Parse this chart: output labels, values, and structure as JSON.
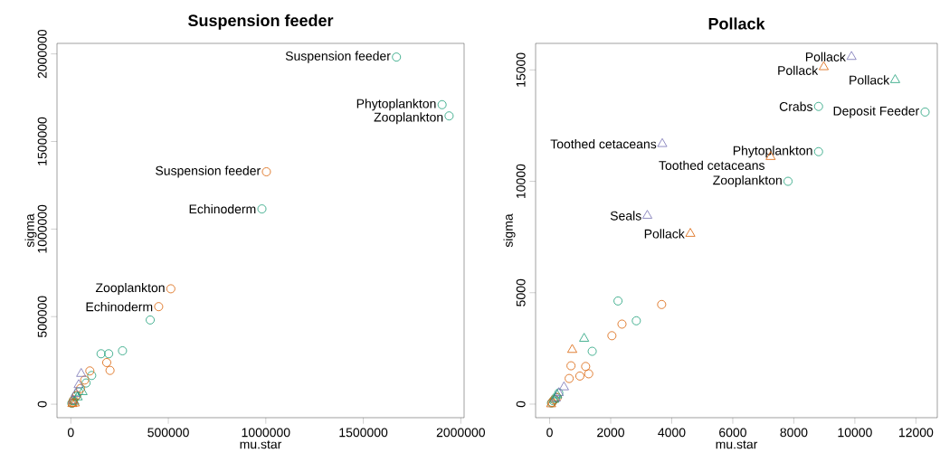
{
  "chart_data": [
    {
      "type": "scatter",
      "title": "Suspension feeder",
      "xlabel": "mu.star",
      "ylabel": "sigma",
      "xlim": [
        -71000,
        2017000
      ],
      "ylim": [
        -77000,
        2060000
      ],
      "xticks": [
        0,
        500000,
        1000000,
        1500000,
        2000000
      ],
      "yticks": [
        0,
        500000,
        1000000,
        1500000,
        2000000
      ],
      "series": [
        {
          "color": "#1b9e77",
          "marker": "circle",
          "x": [
            1904000,
            1940000,
            980000,
            407000,
            155000,
            194000,
            265000,
            107000,
            78000,
            40000,
            25000,
            12000,
            5000
          ],
          "values": [
            1710000,
            1646000,
            1115000,
            481000,
            288000,
            288000,
            305000,
            164000,
            121000,
            70000,
            45000,
            20000,
            5000
          ]
        },
        {
          "color": "#d95f02",
          "marker": "circle",
          "x": [
            512800,
            450500,
            184000,
            201000,
            97500,
            71000,
            50000,
            30000,
            15000,
            8000
          ],
          "values": [
            659000,
            557000,
            238000,
            193000,
            190000,
            138000,
            90000,
            50000,
            25000,
            8000
          ]
        },
        {
          "color": "#7570b3",
          "marker": "triangle",
          "x": [
            53000,
            40000,
            25000,
            12000
          ],
          "values": [
            174000,
            110000,
            60000,
            20000
          ]
        },
        {
          "color": "#1b9e77",
          "marker": "triangle",
          "x": [
            60000,
            35000,
            18000
          ],
          "values": [
            70000,
            40000,
            15000
          ]
        },
        {
          "color": "#d95f02",
          "marker": "triangle",
          "x": [
            20000,
            8000
          ],
          "values": [
            5000,
            2000
          ]
        },
        {
          "color": "#1b9e77",
          "marker": "circle",
          "x": [
            1670000
          ],
          "values": [
            1982000
          ]
        },
        {
          "color": "#d95f02",
          "marker": "circle",
          "x": [
            1003000
          ],
          "values": [
            1327000
          ]
        }
      ],
      "annotations": [
        {
          "text": "Suspension feeder",
          "x": 1670000,
          "y": 1982000
        },
        {
          "text": "Phytoplankton",
          "x": 1904000,
          "y": 1710000
        },
        {
          "text": "Zooplankton",
          "x": 1940000,
          "y": 1646000
        },
        {
          "text": "Suspension feeder",
          "x": 1003000,
          "y": 1327000
        },
        {
          "text": "Echinoderm",
          "x": 980000,
          "y": 1115000
        },
        {
          "text": "Zooplankton",
          "x": 512800,
          "y": 659000
        },
        {
          "text": "Echinoderm",
          "x": 450500,
          "y": 557000
        }
      ]
    },
    {
      "type": "scatter",
      "title": "Pollack",
      "xlabel": "mu.star",
      "ylabel": "sigma",
      "xlim": [
        -460,
        12700
      ],
      "ylim": [
        -610,
        16190
      ],
      "xticks": [
        0,
        2000,
        4000,
        6000,
        8000,
        10000,
        12000
      ],
      "yticks": [
        0,
        5000,
        10000,
        15000
      ],
      "series": [
        {
          "color": "#1b9e77",
          "marker": "circle",
          "x": [
            8810,
            12300,
            8810,
            7810,
            2240,
            2840,
            1395,
            300,
            200,
            120,
            60
          ],
          "values": [
            13360,
            13110,
            11330,
            10000,
            4630,
            3740,
            2370,
            500,
            300,
            150,
            50
          ]
        },
        {
          "color": "#d95f02",
          "marker": "circle",
          "x": [
            3670,
            2370,
            2040,
            700,
            1180,
            640,
            990,
            1280,
            250,
            150,
            80
          ],
          "values": [
            4470,
            3590,
            3070,
            1720,
            1690,
            1150,
            1260,
            1360,
            300,
            200,
            80
          ]
        },
        {
          "color": "#7570b3",
          "marker": "triangle",
          "x": [
            3690,
            3200,
            470,
            300,
            200
          ],
          "values": [
            11680,
            8460,
            760,
            500,
            250
          ]
        },
        {
          "color": "#d95f02",
          "marker": "triangle",
          "x": [
            7240,
            740,
            50
          ],
          "values": [
            11100,
            2440,
            0
          ]
        },
        {
          "color": "#1b9e77",
          "marker": "triangle",
          "x": [
            1130,
            250,
            150
          ],
          "values": [
            2940,
            400,
            200
          ]
        },
        {
          "color": "#7570b3",
          "marker": "triangle",
          "x": [
            9890
          ],
          "values": [
            15590
          ]
        },
        {
          "color": "#d95f02",
          "marker": "triangle",
          "x": [
            8980,
            4610
          ],
          "values": [
            15130,
            7650
          ]
        },
        {
          "color": "#1b9e77",
          "marker": "triangle",
          "x": [
            11320
          ],
          "values": [
            14550
          ]
        }
      ],
      "annotations": [
        {
          "text": "Pollack",
          "x": 9890,
          "y": 15590
        },
        {
          "text": "Pollack",
          "x": 8980,
          "y": 15130
        },
        {
          "text": "Pollack",
          "x": 11320,
          "y": 14550
        },
        {
          "text": "Crabs",
          "x": 8810,
          "y": 13360
        },
        {
          "text": "Deposit Feeder",
          "x": 12300,
          "y": 13110
        },
        {
          "text": "Toothed cetaceans",
          "x": 3690,
          "y": 11680
        },
        {
          "text": "Phytoplankton",
          "x": 8810,
          "y": 11330
        },
        {
          "text": "Toothed cetaceans",
          "x": 7240,
          "y": 11100
        },
        {
          "text": "Zooplankton",
          "x": 7810,
          "y": 10000
        },
        {
          "text": "Seals",
          "x": 3200,
          "y": 8460
        },
        {
          "text": "Pollack",
          "x": 4610,
          "y": 7650
        }
      ]
    }
  ]
}
